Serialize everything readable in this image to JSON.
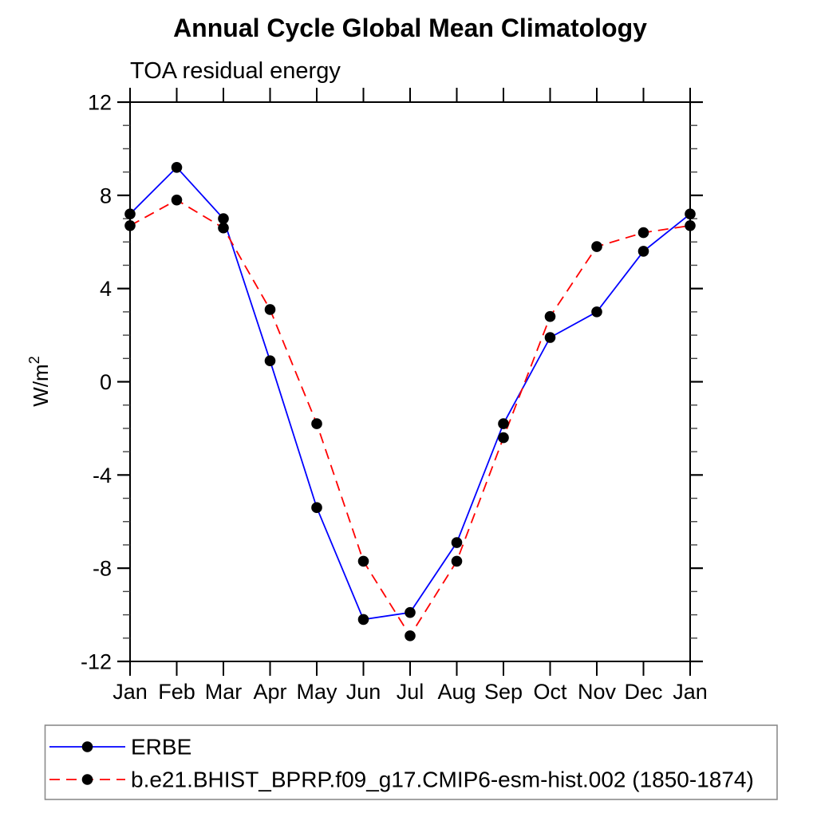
{
  "page": {
    "ylabel_base": "W/m",
    "ylabel_exp": "2"
  },
  "chart_data": {
    "type": "line",
    "title": "Annual Cycle Global Mean Climatology",
    "subtitle": "TOA residual energy",
    "ylabel": "W/m^2",
    "categories": [
      "Jan",
      "Feb",
      "Mar",
      "Apr",
      "May",
      "Jun",
      "Jul",
      "Aug",
      "Sep",
      "Oct",
      "Nov",
      "Dec",
      "Jan"
    ],
    "ylim": [
      -12,
      12
    ],
    "ytick_major": [
      -12,
      -8,
      -4,
      0,
      4,
      8,
      12
    ],
    "ytick_major_labels": [
      "-12",
      "-8",
      "-4",
      "0",
      "4",
      "8",
      "12"
    ],
    "ytick_minor_step": 1,
    "grid": false,
    "legend_position": "bottom-left-box",
    "axis_color": "#000000",
    "marker_color": "#000000",
    "legend_border_color": "#8c8c8c",
    "series": [
      {
        "name": "ERBE",
        "color": "#0000ff",
        "style": "solid",
        "marker": "filled-circle",
        "values": [
          7.2,
          9.2,
          7.0,
          0.9,
          -5.4,
          -10.2,
          -9.9,
          -6.9,
          -1.8,
          1.9,
          3.0,
          5.6,
          7.2
        ]
      },
      {
        "name": "b.e21.BHIST_BPRP.f09_g17.CMIP6-esm-hist.002 (1850-1874)",
        "color": "#ff0000",
        "style": "dashed",
        "marker": "filled-circle",
        "values": [
          6.7,
          7.8,
          6.6,
          3.1,
          -1.8,
          -7.7,
          -10.9,
          -7.7,
          -2.4,
          2.8,
          5.8,
          6.4,
          6.7
        ]
      }
    ]
  }
}
